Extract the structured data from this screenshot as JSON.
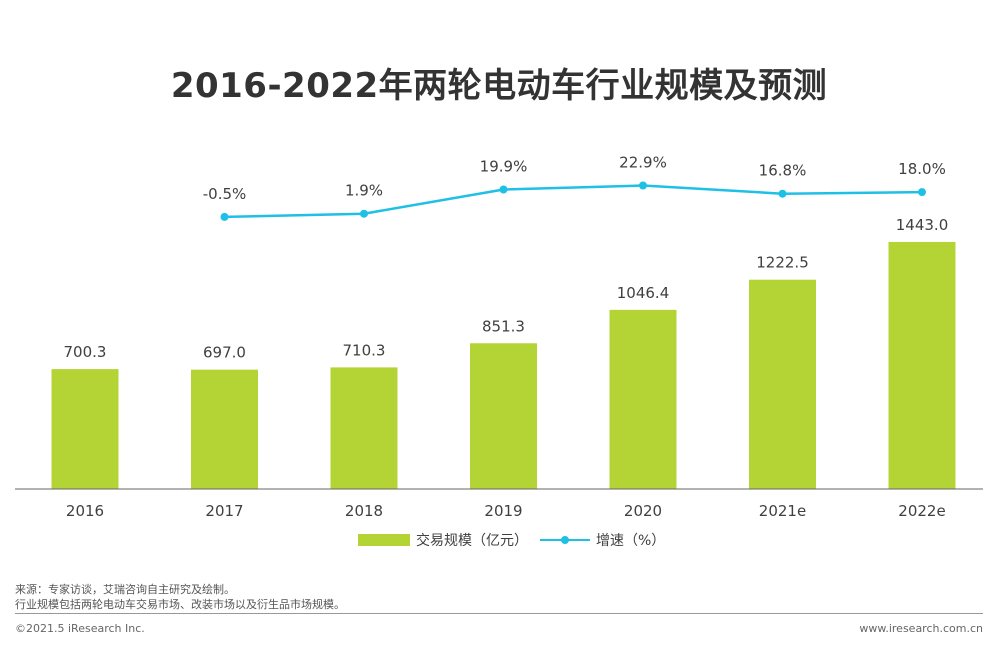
{
  "chart_data": {
    "type": "bar",
    "title": "2016-2022年两轮电动车行业规模及预测",
    "categories": [
      "2016",
      "2017",
      "2018",
      "2019",
      "2020",
      "2021e",
      "2022e"
    ],
    "series": [
      {
        "name": "交易规模（亿元）",
        "type": "bar",
        "values": [
          700.3,
          697.0,
          710.3,
          851.3,
          1046.4,
          1222.5,
          1443.0
        ],
        "labels": [
          "700.3",
          "697.0",
          "710.3",
          "851.3",
          "1046.4",
          "1222.5",
          "1443.0"
        ],
        "color": "#b4d334"
      },
      {
        "name": "增速（%）",
        "type": "line",
        "values": [
          null,
          -0.5,
          1.9,
          19.9,
          22.9,
          16.8,
          18.0
        ],
        "labels": [
          null,
          "-0.5%",
          "1.9%",
          "19.9%",
          "22.9%",
          "16.8%",
          "18.0%"
        ],
        "color": "#1ec0e6"
      }
    ],
    "legend_position": "bottom"
  },
  "footer": {
    "source": "来源：专家访谈，艾瑞咨询自主研究及绘制。",
    "note": "行业规模包括两轮电动车交易市场、改装市场以及衍生品市场规模。",
    "copyright": "©2021.5 iResearch Inc.",
    "website": "www.iresearch.com.cn"
  }
}
